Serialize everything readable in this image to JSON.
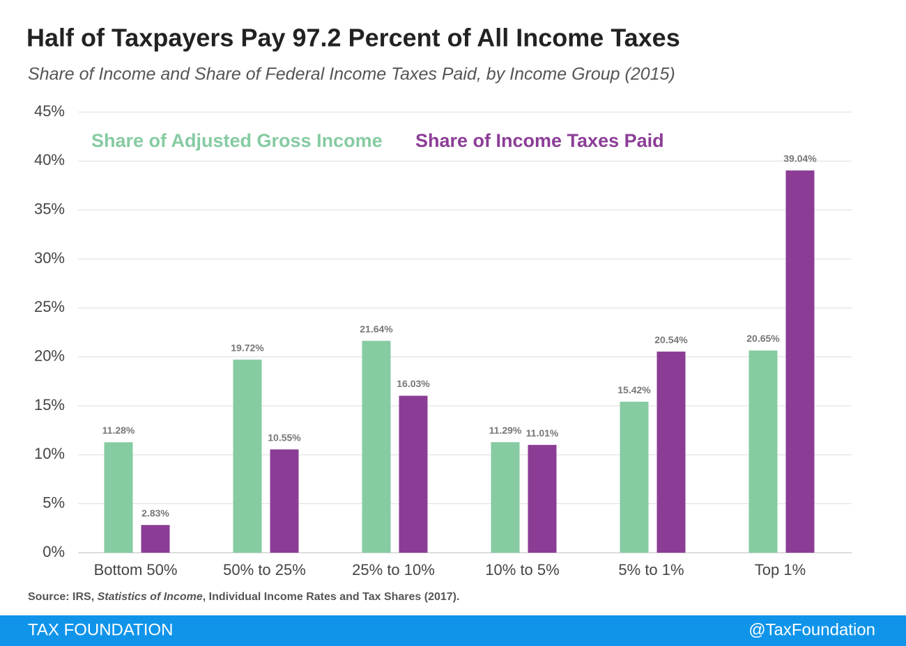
{
  "chart_data": {
    "type": "bar",
    "title": "Half of Taxpayers Pay 97.2 Percent of All Income Taxes",
    "subtitle": "Share of Income and Share of Federal Income Taxes Paid, by Income Group (2015)",
    "categories": [
      "Bottom 50%",
      "50% to 25%",
      "25% to 10%",
      "10% to 5%",
      "5% to 1%",
      "Top 1%"
    ],
    "series": [
      {
        "name": "Share of Adjusted Gross Income",
        "color": "#86cba2",
        "values": [
          11.28,
          19.72,
          21.64,
          11.29,
          15.42,
          20.65
        ],
        "value_labels": [
          "11.28%",
          "19.72%",
          "21.64%",
          "11.29%",
          "15.42%",
          "20.65%"
        ]
      },
      {
        "name": "Share of Income Taxes Paid",
        "color": "#8b3d96",
        "values": [
          2.83,
          10.55,
          16.03,
          11.01,
          20.54,
          39.04
        ],
        "value_labels": [
          "2.83%",
          "10.55%",
          "16.03%",
          "11.01%",
          "20.54%",
          "39.04%"
        ]
      }
    ],
    "ylim": [
      0,
      45
    ],
    "yticks": [
      {
        "value": 0,
        "label": "0%"
      },
      {
        "value": 5,
        "label": "5%"
      },
      {
        "value": 10,
        "label": "10%"
      },
      {
        "value": 15,
        "label": "15%"
      },
      {
        "value": 20,
        "label": "20%"
      },
      {
        "value": 25,
        "label": "25%"
      },
      {
        "value": 30,
        "label": "30%"
      },
      {
        "value": 35,
        "label": "35%"
      },
      {
        "value": 40,
        "label": "40%"
      },
      {
        "value": 45,
        "label": "45%"
      }
    ],
    "grid": true,
    "legend": "top-left",
    "source": [
      "Source: IRS, ",
      "Statistics of Income",
      ", Individual Income Rates and Tax Shares (2017)."
    ]
  },
  "footer": {
    "brand": "TAX FOUNDATION",
    "handle": "@TaxFoundation"
  }
}
